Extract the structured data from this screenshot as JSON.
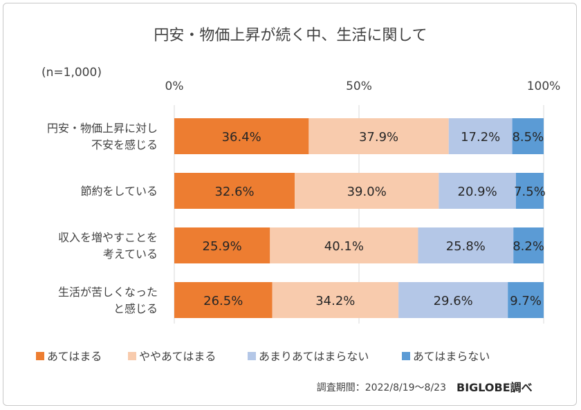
{
  "chart_data": {
    "type": "bar",
    "orientation": "horizontal",
    "stacked": true,
    "title": "円安・物価上昇が続く中、生活に関して",
    "note": "(n=1,000)",
    "xlim": [
      0,
      100
    ],
    "x_ticks": [
      "0%",
      "50%",
      "100%"
    ],
    "grid": true,
    "legend_position": "bottom",
    "categories": [
      [
        "円安・物価上昇に対し",
        "不安を感じる"
      ],
      [
        "節約をしている"
      ],
      [
        "収入を増やすことを",
        "考えている"
      ],
      [
        "生活が苦しくなった",
        "と感じる"
      ]
    ],
    "series": [
      {
        "name": "あてはまる",
        "color": "#ed7d31",
        "values": [
          36.4,
          32.6,
          25.9,
          26.5
        ],
        "labels": [
          "36.4%",
          "32.6%",
          "25.9%",
          "26.5%"
        ]
      },
      {
        "name": "ややあてはまる",
        "color": "#f8cbad",
        "values": [
          37.9,
          39.0,
          40.1,
          34.2
        ],
        "labels": [
          "37.9%",
          "39.0%",
          "40.1%",
          "34.2%"
        ]
      },
      {
        "name": "あまりあてはまらない",
        "color": "#b4c7e7",
        "values": [
          17.2,
          20.9,
          25.8,
          29.6
        ],
        "labels": [
          "17.2%",
          "20.9%",
          "25.8%",
          "29.6%"
        ]
      },
      {
        "name": "あてはまらない",
        "color": "#5b9bd5",
        "values": [
          8.5,
          7.5,
          8.2,
          9.7
        ],
        "labels": [
          "8.5%",
          "7.5%",
          "8.2%",
          "9.7%"
        ]
      }
    ]
  },
  "footer": {
    "source": "調査期間：2022/8/19～8/23",
    "brand": "BIGLOBE調べ"
  }
}
